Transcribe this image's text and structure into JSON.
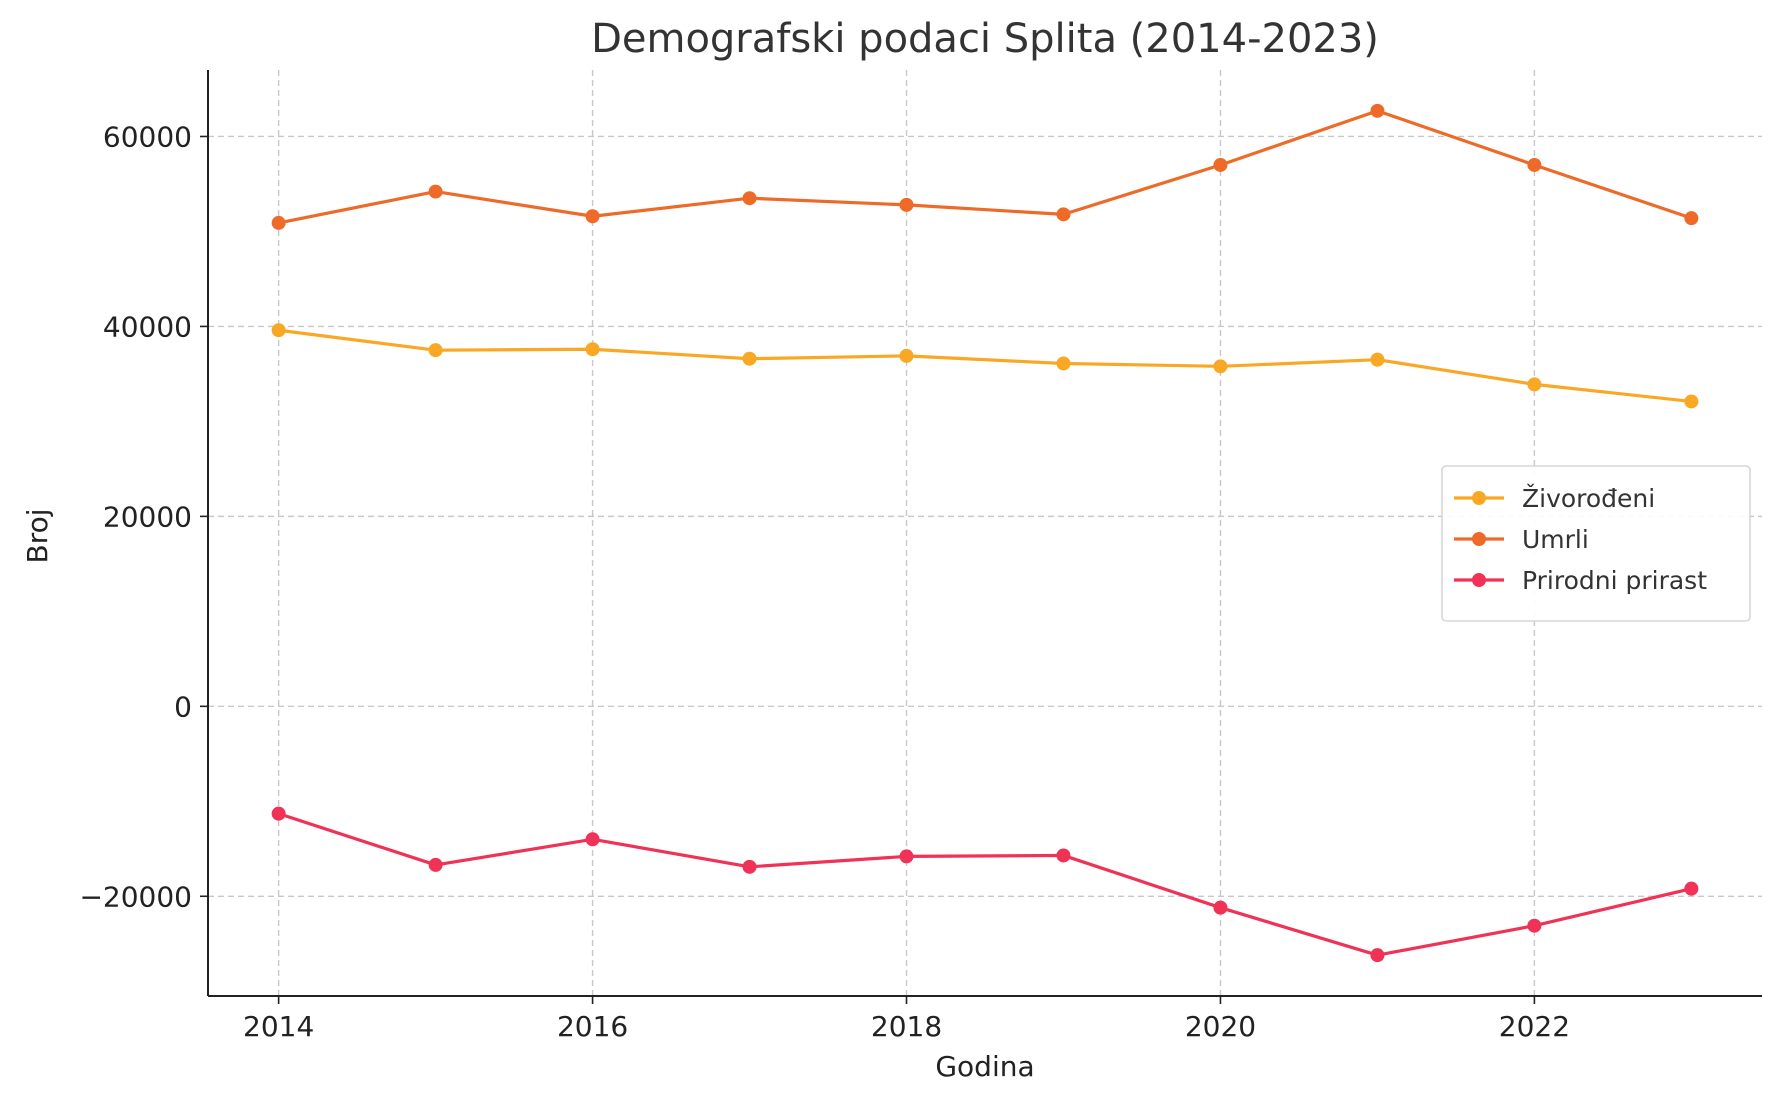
{
  "chart_data": {
    "type": "line",
    "title": "Demografski podaci Splita (2014-2023)",
    "xlabel": "Godina",
    "ylabel": "Broj",
    "x": [
      2014,
      2015,
      2016,
      2017,
      2018,
      2019,
      2020,
      2021,
      2022,
      2023
    ],
    "xlim": [
      2013.55,
      2023.45
    ],
    "ylim": [
      -30500,
      67000
    ],
    "x_ticks": [
      2014,
      2016,
      2018,
      2020,
      2022
    ],
    "x_tick_labels": [
      "2014",
      "2016",
      "2018",
      "2020",
      "2022"
    ],
    "y_ticks": [
      -20000,
      0,
      20000,
      40000,
      60000
    ],
    "y_tick_labels": [
      "−20000",
      "0",
      "20000",
      "40000",
      "60000"
    ],
    "grid": true,
    "legend_position": "center-right",
    "series": [
      {
        "name": "Živorođeni",
        "color": "#f9a825",
        "values": [
          39600,
          37500,
          37600,
          36600,
          36900,
          36100,
          35800,
          36500,
          33900,
          32100
        ]
      },
      {
        "name": "Umrli",
        "color": "#ee6a28",
        "values": [
          50900,
          54200,
          51600,
          53500,
          52800,
          51800,
          57000,
          62700,
          57000,
          51400
        ]
      },
      {
        "name": "Prirodni prirast",
        "color": "#ef3256",
        "values": [
          -11300,
          -16700,
          -14000,
          -16900,
          -15800,
          -15700,
          -21200,
          -26200,
          -23100,
          -19200
        ]
      }
    ]
  }
}
